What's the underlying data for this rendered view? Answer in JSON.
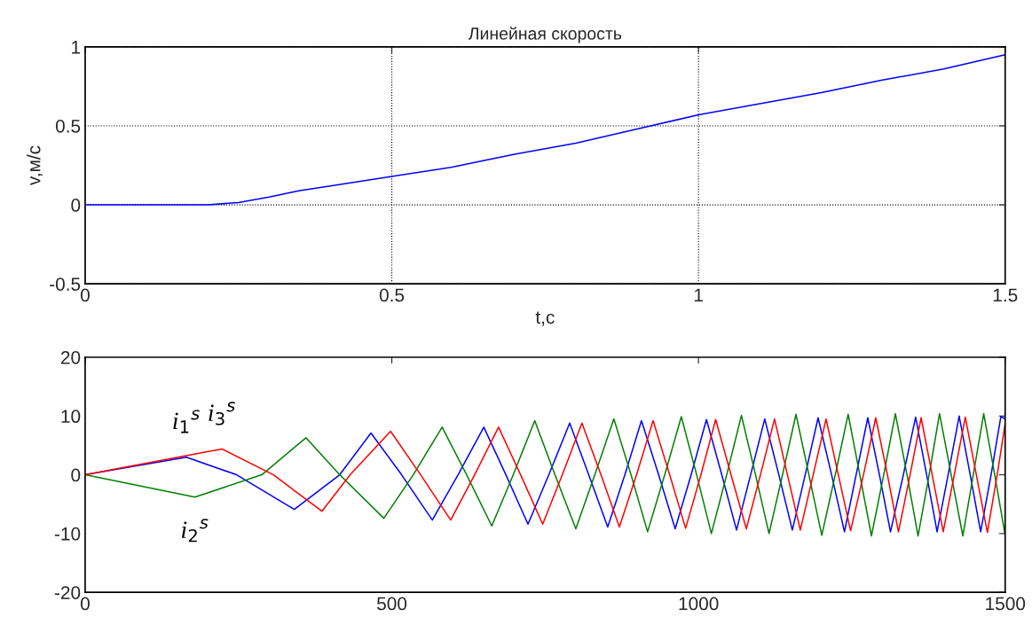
{
  "chart_data": [
    {
      "type": "line",
      "title": "Линейная скорость",
      "xlabel": "t,c",
      "ylabel": "v,м/c",
      "xlim": [
        0,
        1.5
      ],
      "ylim": [
        -0.5,
        1
      ],
      "xticks": [
        0,
        0.5,
        1,
        1.5
      ],
      "yticks": [
        -0.5,
        0,
        0.5,
        1
      ],
      "grid": true,
      "series": [
        {
          "color": "#0000ff",
          "x": [
            0,
            0.1,
            0.2,
            0.25,
            0.3,
            0.35,
            0.4,
            0.5,
            0.6,
            0.7,
            0.8,
            0.9,
            1.0,
            1.1,
            1.2,
            1.3,
            1.4,
            1.5
          ],
          "values": [
            0,
            0,
            0,
            0.015,
            0.05,
            0.09,
            0.12,
            0.18,
            0.24,
            0.32,
            0.39,
            0.48,
            0.57,
            0.64,
            0.71,
            0.79,
            0.86,
            0.95
          ]
        }
      ]
    },
    {
      "type": "line",
      "xlim": [
        0,
        1500
      ],
      "ylim": [
        -20,
        20
      ],
      "xticks": [
        0,
        500,
        1000,
        1500
      ],
      "yticks": [
        -20,
        -10,
        0,
        10,
        20
      ],
      "grid": false,
      "series": [
        {
          "name": "i$_{1}$$^{s}$",
          "color": "#0000ff",
          "x": [
            0,
            165,
            247,
            341,
            415,
            466,
            516,
            566,
            608,
            650,
            686,
            722,
            756,
            790,
            821,
            852,
            880,
            907,
            935,
            962,
            988,
            1013,
            1038,
            1062,
            1085,
            1108,
            1131,
            1153,
            1174,
            1195,
            1217,
            1238,
            1257,
            1276,
            1295,
            1313,
            1334,
            1354,
            1372,
            1389,
            1407,
            1425,
            1443,
            1460,
            1477,
            1493,
            1500
          ],
          "values": [
            0,
            3.0,
            0,
            -5.9,
            0,
            7.1,
            0,
            -7.7,
            0,
            8.1,
            0,
            -8.4,
            0,
            8.8,
            0,
            -8.9,
            0,
            9.2,
            0,
            -9.2,
            0,
            9.4,
            0,
            -9.4,
            0,
            9.5,
            0,
            -9.4,
            0,
            9.7,
            0,
            -9.7,
            0,
            9.7,
            0,
            -9.7,
            0,
            9.8,
            0,
            -9.7,
            0,
            10.0,
            0,
            -9.7,
            0,
            9.9,
            9.5
          ]
        },
        {
          "name": "i$_{2}$$^{s}$",
          "color": "#008000",
          "x": [
            0,
            179,
            288,
            360,
            415,
            487,
            535,
            582,
            622,
            663,
            698,
            733,
            766,
            800,
            831,
            862,
            890,
            917,
            945,
            972,
            997,
            1021,
            1046,
            1070,
            1093,
            1115,
            1137,
            1159,
            1180,
            1201,
            1223,
            1244,
            1263,
            1282,
            1302,
            1321,
            1340,
            1358,
            1376,
            1393,
            1412,
            1431,
            1448,
            1465,
            1483,
            1500
          ],
          "values": [
            0,
            -3.8,
            0,
            6.3,
            0,
            -7.4,
            0,
            8.1,
            0,
            -8.7,
            0,
            9.2,
            0,
            -9.2,
            0,
            9.5,
            0,
            -9.7,
            0,
            9.9,
            0,
            -10.0,
            0,
            10.1,
            0,
            -10.0,
            0,
            10.3,
            0,
            -10.3,
            0,
            10.3,
            0,
            -10.4,
            0,
            10.4,
            0,
            -10.4,
            0,
            10.4,
            0,
            -10.4,
            0,
            10.4,
            0,
            -10.3
          ]
        },
        {
          "name": "i$_{3}$$^{s}$",
          "color": "#ff0000",
          "x": [
            0,
            223,
            307,
            386,
            432,
            498,
            547,
            596,
            635,
            674,
            710,
            746,
            778,
            810,
            841,
            871,
            899,
            926,
            953,
            979,
            1004,
            1028,
            1053,
            1078,
            1101,
            1124,
            1145,
            1166,
            1187,
            1208,
            1228,
            1248,
            1269,
            1289,
            1308,
            1326,
            1345,
            1363,
            1381,
            1399,
            1417,
            1435,
            1453,
            1471,
            1487,
            1500
          ],
          "values": [
            0,
            4.4,
            0,
            -6.2,
            0,
            7.4,
            0,
            -7.7,
            0,
            8.1,
            0,
            -8.4,
            0,
            8.8,
            0,
            -8.9,
            0,
            9.2,
            0,
            -9.1,
            0,
            9.4,
            0,
            -9.2,
            0,
            9.5,
            0,
            -9.4,
            0,
            9.5,
            0,
            -9.5,
            0,
            9.7,
            0,
            -9.7,
            0,
            9.7,
            0,
            -9.7,
            0,
            9.8,
            0,
            -9.8,
            0,
            8.7
          ]
        }
      ]
    }
  ]
}
